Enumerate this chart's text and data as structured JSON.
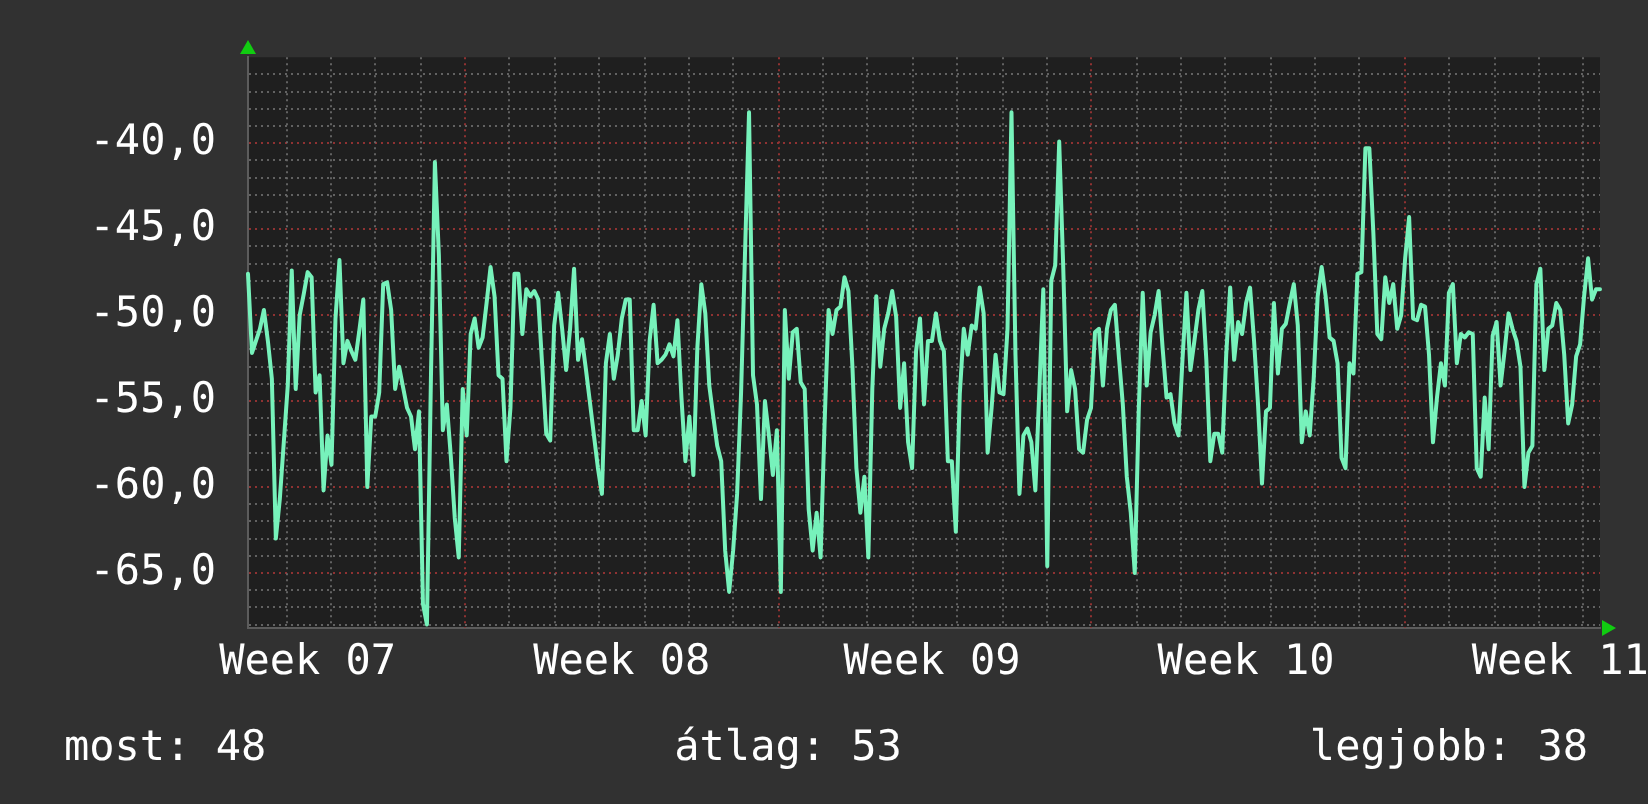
{
  "chart_data": {
    "type": "line",
    "categories": [
      null,
      null,
      null,
      null,
      null,
      null,
      null,
      null,
      null,
      null,
      null,
      null,
      null,
      null,
      null,
      "Week 07",
      null,
      null,
      null,
      null,
      null,
      null,
      null,
      null,
      null,
      null,
      null,
      null,
      null,
      null,
      null,
      null,
      null,
      null,
      null,
      null,
      null,
      null,
      null,
      null,
      null,
      null,
      null,
      null,
      null,
      null,
      null,
      null,
      null,
      null,
      null,
      null,
      null,
      null,
      null,
      null,
      null,
      null,
      null,
      null,
      null,
      null,
      null,
      null,
      null,
      null,
      null,
      null,
      null,
      null,
      null,
      null,
      null,
      null,
      null,
      null,
      null,
      null,
      null,
      null,
      null,
      null,
      null,
      null,
      null,
      null,
      null,
      null,
      null,
      null,
      null,
      null,
      null,
      null,
      "Week 08",
      null,
      null,
      null,
      null,
      null,
      null,
      null,
      null,
      null,
      null,
      null,
      null,
      null,
      null,
      null,
      null,
      null,
      null,
      null,
      null,
      null,
      null,
      null,
      null,
      null,
      null,
      null,
      null,
      null,
      null,
      null,
      null,
      null,
      null,
      null,
      null,
      null,
      null,
      null,
      null,
      null,
      null,
      null,
      null,
      null,
      null,
      null,
      null,
      null,
      null,
      null,
      null,
      null,
      null,
      null,
      null,
      null,
      null,
      null,
      null,
      null,
      null,
      null,
      null,
      null,
      null,
      null,
      null,
      null,
      null,
      null,
      null,
      null,
      null,
      null,
      null,
      null,
      "Week 09",
      null,
      null,
      null,
      null,
      null,
      null,
      null,
      null,
      null,
      null,
      null,
      null,
      null,
      null,
      null,
      null,
      null,
      null,
      null,
      null,
      null,
      null,
      null,
      null,
      null,
      null,
      null,
      null,
      null,
      null,
      null,
      null,
      null,
      null,
      null,
      null,
      null,
      null,
      null,
      null,
      null,
      null,
      null,
      null,
      null,
      null,
      null,
      null,
      null,
      null,
      null,
      null,
      null,
      null,
      null,
      null,
      null,
      null,
      null,
      null,
      null,
      null,
      null,
      null,
      null,
      null,
      null,
      null,
      null,
      null,
      null,
      null,
      null,
      null,
      null,
      null,
      null,
      null,
      "Week 10",
      null,
      null,
      null,
      null,
      null,
      null,
      null,
      null,
      null,
      null,
      null,
      null,
      null,
      null,
      null,
      null,
      null,
      null,
      null,
      null,
      null,
      null,
      null,
      null,
      null,
      null,
      null,
      null,
      null,
      null,
      null,
      null,
      null,
      null,
      null,
      null,
      null,
      null,
      null,
      null,
      null,
      null,
      null,
      null,
      null,
      null,
      null,
      null,
      null,
      null,
      null,
      null,
      null,
      null,
      null,
      null,
      null,
      null,
      null,
      null,
      null,
      null,
      null,
      null,
      null,
      null,
      null,
      null,
      null,
      null,
      null,
      null,
      null,
      null,
      null,
      null,
      null,
      null,
      "Week 11",
      null,
      null,
      null,
      null,
      null,
      null,
      null,
      null,
      null,
      null
    ],
    "values": [
      -47.6,
      -52.2,
      -51.5,
      -50.8,
      -49.7,
      -51.5,
      -53.7,
      -63,
      -60.7,
      -57.4,
      -54.1,
      -47.4,
      -54.3,
      -50,
      -48.8,
      -47.5,
      -47.8,
      -54.5,
      -53.5,
      -60.2,
      -57,
      -58.7,
      -50.2,
      -46.8,
      -52.8,
      -51.5,
      -52.1,
      -52.6,
      -50.9,
      -49.1,
      -60,
      -55.9,
      -55.9,
      -54.5,
      -48.2,
      -48.1,
      -49.7,
      -54.3,
      -53,
      -54.2,
      -55.4,
      -55.9,
      -57.8,
      -55.6,
      -66.8,
      -68,
      -53.7,
      -41.1,
      -46.5,
      -56.7,
      -55.2,
      -58.2,
      -61.8,
      -64.1,
      -54.3,
      -57,
      -51.1,
      -50.2,
      -51.9,
      -51.3,
      -49.3,
      -47.2,
      -48.9,
      -53.5,
      -53.7,
      -58.5,
      -55.4,
      -47.6,
      -47.6,
      -51.1,
      -48.5,
      -48.9,
      -48.6,
      -49.1,
      -53,
      -56.9,
      -57.3,
      -50.6,
      -48.7,
      -50.8,
      -53.2,
      -50.8,
      -47.3,
      -52.6,
      -51.4,
      -53.2,
      -55.1,
      -57,
      -58.9,
      -60.4,
      -52.8,
      -51.1,
      -53.7,
      -52.3,
      -50.2,
      -49.1,
      -49.1,
      -56.7,
      -56.7,
      -55,
      -57,
      -51.5,
      -49.4,
      -52.8,
      -52.6,
      -52.3,
      -51.7,
      -52.4,
      -50.3,
      -54.8,
      -58.5,
      -55.9,
      -59.3,
      -51.9,
      -48.2,
      -49.9,
      -54.1,
      -55.9,
      -57.6,
      -58.5,
      -63.7,
      -66.1,
      -63.7,
      -60.4,
      -54.5,
      -46.3,
      -38.2,
      -53.5,
      -55.2,
      -60.7,
      -55,
      -57,
      -59.3,
      -56.7,
      -66.1,
      -49.7,
      -53.7,
      -51,
      -50.8,
      -53.9,
      -54.3,
      -61.3,
      -63.7,
      -61.5,
      -64.1,
      -56.3,
      -49.7,
      -51.1,
      -49.7,
      -49.5,
      -47.8,
      -48.6,
      -53,
      -58.9,
      -61.5,
      -59.4,
      -64.1,
      -54.3,
      -48.9,
      -53,
      -50.8,
      -49.9,
      -48.6,
      -50.1,
      -55.4,
      -52.8,
      -57.4,
      -58.9,
      -52.1,
      -50.2,
      -55.2,
      -51.5,
      -51.5,
      -49.9,
      -51.5,
      -52.1,
      -58.5,
      -58.5,
      -62.6,
      -54.6,
      -50.8,
      -52.3,
      -50.6,
      -50.8,
      -48.4,
      -49.9,
      -58,
      -55.4,
      -52.3,
      -54.5,
      -54.6,
      -50.8,
      -38.2,
      -52.3,
      -60.4,
      -57,
      -56.6,
      -57.4,
      -60.2,
      -54.4,
      -48.5,
      -64.6,
      -48,
      -47.1,
      -39.9,
      -47.1,
      -55.6,
      -53.2,
      -54.3,
      -57.8,
      -58,
      -56.1,
      -55.4,
      -51,
      -50.8,
      -54.1,
      -50.8,
      -49.7,
      -49.4,
      -52.4,
      -55.2,
      -59.4,
      -61.5,
      -65,
      -55.6,
      -48.7,
      -54.1,
      -51,
      -50,
      -48.6,
      -51.9,
      -54.8,
      -54.6,
      -56.3,
      -57,
      -52.6,
      -48.7,
      -53.2,
      -51.5,
      -49.7,
      -48.6,
      -52.6,
      -58.5,
      -56.9,
      -56.9,
      -58,
      -52.3,
      -48.4,
      -52.6,
      -50.4,
      -51.1,
      -49.3,
      -48.4,
      -51.5,
      -55.2,
      -59.8,
      -55.6,
      -55.4,
      -49.3,
      -53.4,
      -50.8,
      -50.5,
      -49.3,
      -48.2,
      -50.6,
      -57.4,
      -55.6,
      -57,
      -53.7,
      -48.9,
      -47.2,
      -48.9,
      -51.3,
      -51.5,
      -52.8,
      -58.3,
      -58.9,
      -52.8,
      -53.4,
      -47.6,
      -47.5,
      -40.3,
      -40.3,
      -45.2,
      -51.1,
      -51.4,
      -47.8,
      -49.3,
      -48.2,
      -50.8,
      -50,
      -46.7,
      -44.3,
      -50.2,
      -50.3,
      -49.4,
      -49.5,
      -52.3,
      -57.4,
      -54.8,
      -52.8,
      -54.1,
      -48.7,
      -48.2,
      -52.8,
      -51.1,
      -51.3,
      -51,
      -51.1,
      -58.9,
      -59.4,
      -54.8,
      -57.8,
      -51.2,
      -50.4,
      -54.1,
      -52.1,
      -49.9,
      -50.8,
      -51.5,
      -53,
      -60,
      -58,
      -57.6,
      -48.2,
      -47.3,
      -53.2,
      -50.8,
      -50.6,
      -49.3,
      -49.7,
      -52.3,
      -56.3,
      -55.2,
      -52.4,
      -51.7,
      -48.9,
      -46.7,
      -49.1,
      -48.5,
      -48.5
    ],
    "color": "#77f2bb",
    "ylim": [
      -68.2,
      -35
    ],
    "yticks": [
      {
        "value": -68,
        "label": null
      },
      {
        "value": -67,
        "label": null
      },
      {
        "value": -66,
        "label": null
      },
      {
        "value": -65,
        "label": "-65,0"
      },
      {
        "value": -64,
        "label": null
      },
      {
        "value": -63,
        "label": null
      },
      {
        "value": -62,
        "label": null
      },
      {
        "value": -61,
        "label": null
      },
      {
        "value": -60,
        "label": "-60,0"
      },
      {
        "value": -59,
        "label": null
      },
      {
        "value": -58,
        "label": null
      },
      {
        "value": -57,
        "label": null
      },
      {
        "value": -56,
        "label": null
      },
      {
        "value": -55,
        "label": "-55,0"
      },
      {
        "value": -54,
        "label": null
      },
      {
        "value": -53,
        "label": null
      },
      {
        "value": -52,
        "label": null
      },
      {
        "value": -51,
        "label": null
      },
      {
        "value": -50,
        "label": "-50,0"
      },
      {
        "value": -49,
        "label": null
      },
      {
        "value": -48,
        "label": null
      },
      {
        "value": -47,
        "label": null
      },
      {
        "value": -46,
        "label": null
      },
      {
        "value": -45,
        "label": "-45,0"
      },
      {
        "value": -44,
        "label": null
      },
      {
        "value": -43,
        "label": null
      },
      {
        "value": -42,
        "label": null
      },
      {
        "value": -41,
        "label": null
      },
      {
        "value": -40,
        "label": "-40,0"
      },
      {
        "value": -39,
        "label": null
      },
      {
        "value": -38,
        "label": null
      },
      {
        "value": -37,
        "label": null
      },
      {
        "value": -36,
        "label": null
      }
    ],
    "grid": true,
    "annotations": [
      "most: 48",
      "átlag: 53",
      "legjobb: 38"
    ]
  }
}
